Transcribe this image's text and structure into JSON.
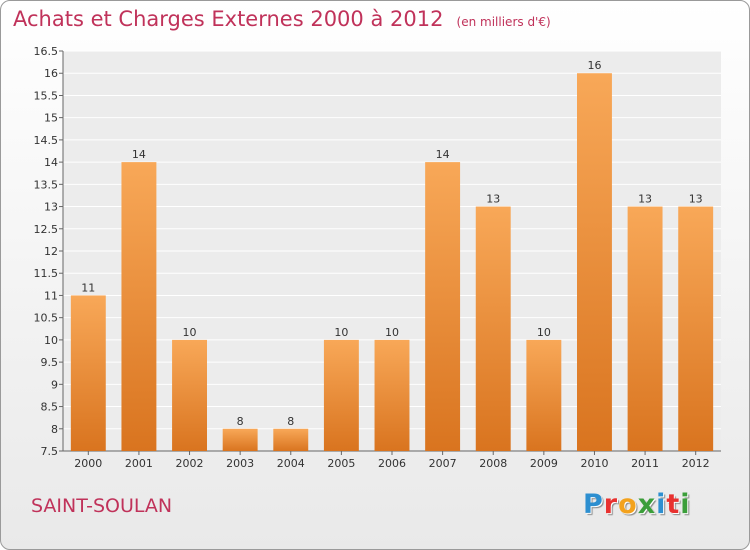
{
  "title": "Achats et Charges Externes 2000 à 2012",
  "unit_label": "(en milliers d'€)",
  "commune": "SAINT-SOULAN",
  "logo": {
    "text": "Proxiti",
    "letter_colors": [
      "#2d8fd0",
      "#e8312f",
      "#f3a21d",
      "#3b9e3a",
      "#2d8fd0",
      "#e8312f",
      "#3b9e3a"
    ]
  },
  "colors": {
    "bar_light": "#f8a858",
    "bar_dark": "#d9741f",
    "text": "#c0325a"
  },
  "chart_data": {
    "type": "bar",
    "title": "Achats et Charges Externes 2000 à 2012",
    "categories": [
      "2000",
      "2001",
      "2002",
      "2003",
      "2004",
      "2005",
      "2006",
      "2007",
      "2008",
      "2009",
      "2010",
      "2011",
      "2012"
    ],
    "values": [
      11,
      14,
      10,
      8,
      8,
      10,
      10,
      14,
      13,
      10,
      16,
      13,
      13
    ],
    "value_labels": [
      "11",
      "14",
      "10",
      "8",
      "8",
      "10",
      "10",
      "14",
      "13",
      "10",
      "16",
      "13",
      "13"
    ],
    "ylim": [
      7.5,
      16.5
    ],
    "yticks": [
      "7.5",
      "8",
      "8.5",
      "9",
      "9.5",
      "10",
      "10.5",
      "11",
      "11.5",
      "12",
      "12.5",
      "13",
      "13.5",
      "14",
      "14.5",
      "15",
      "15.5",
      "16",
      "16.5"
    ],
    "grid": true,
    "legend": "none"
  }
}
